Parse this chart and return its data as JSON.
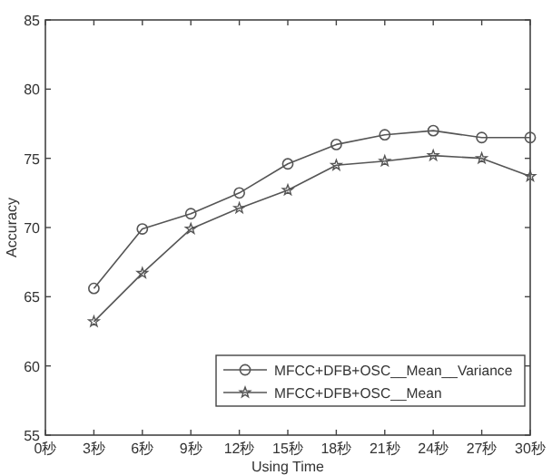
{
  "chart_data": {
    "type": "line",
    "xlabel": "Using Time",
    "ylabel": "Accuracy",
    "x": [
      3,
      6,
      9,
      12,
      15,
      18,
      21,
      24,
      27,
      30
    ],
    "series": [
      {
        "name": "MFCC+DFB+OSC__Mean__Variance",
        "color": "#555555",
        "marker": "circle",
        "values": [
          65.6,
          69.9,
          71.0,
          72.5,
          74.6,
          76.0,
          76.7,
          77.0,
          76.5,
          76.5
        ]
      },
      {
        "name": "MFCC+DFB+OSC__Mean",
        "color": "#555555",
        "marker": "star",
        "values": [
          63.2,
          66.7,
          69.9,
          71.4,
          72.7,
          74.5,
          74.8,
          75.2,
          75.0,
          73.7
        ]
      }
    ],
    "xlim": [
      0,
      30
    ],
    "xticks": [
      {
        "value": 0,
        "label": "0秒"
      },
      {
        "value": 3,
        "label": "3秒"
      },
      {
        "value": 6,
        "label": "6秒"
      },
      {
        "value": 9,
        "label": "9秒"
      },
      {
        "value": 12,
        "label": "12秒"
      },
      {
        "value": 15,
        "label": "15秒"
      },
      {
        "value": 18,
        "label": "18秒"
      },
      {
        "value": 21,
        "label": "21秒"
      },
      {
        "value": 24,
        "label": "24秒"
      },
      {
        "value": 27,
        "label": "27秒"
      },
      {
        "value": 30,
        "label": "30秒"
      }
    ],
    "ylim": [
      55,
      85
    ],
    "yticks": [
      55,
      60,
      65,
      70,
      75,
      80,
      85
    ],
    "grid": false,
    "legend": "bottom right",
    "line_style": "solid"
  }
}
